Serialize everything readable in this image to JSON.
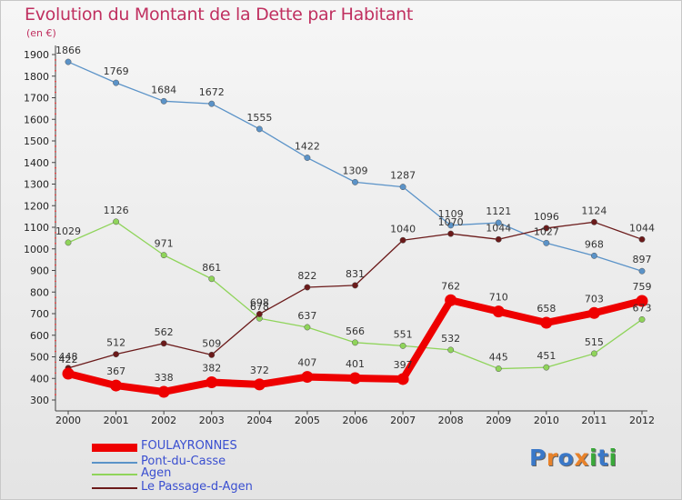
{
  "title": "Evolution du Montant de la Dette par Habitant",
  "subtitle": "(en €)",
  "logo": [
    "P",
    "r",
    "o",
    "x",
    "i",
    "t",
    "i"
  ],
  "logo_colors": [
    "#3a78c8",
    "#e8822a",
    "#3a78c8",
    "#e8822a",
    "#3aa83a",
    "#3a78c8",
    "#3aa83a"
  ],
  "chart_data": {
    "type": "line",
    "x": [
      "2000",
      "2001",
      "2002",
      "2003",
      "2004",
      "2005",
      "2006",
      "2007",
      "2008",
      "2009",
      "2010",
      "2011",
      "2012"
    ],
    "ylim": [
      300,
      1900
    ],
    "yticks": [
      300,
      400,
      500,
      600,
      700,
      800,
      900,
      1000,
      1100,
      1200,
      1300,
      1400,
      1500,
      1600,
      1700,
      1800,
      1900
    ],
    "grid": false,
    "legend_position": "bottom-left",
    "series": [
      {
        "name": "FOULAYRONNES",
        "color": "#ee0000",
        "values": [
          422,
          367,
          338,
          382,
          372,
          407,
          401,
          397,
          762,
          710,
          658,
          703,
          759
        ]
      },
      {
        "name": "Pont-du-Casse",
        "color": "#5b93c8",
        "values": [
          1866,
          1769,
          1684,
          1672,
          1555,
          1422,
          1309,
          1287,
          1109,
          1121,
          1027,
          968,
          897
        ]
      },
      {
        "name": "Agen",
        "color": "#8fd45a",
        "values": [
          1029,
          1126,
          971,
          861,
          678,
          637,
          566,
          551,
          532,
          445,
          451,
          515,
          673
        ]
      },
      {
        "name": "Le Passage-d-Agen",
        "color": "#6b1a1a",
        "values": [
          448,
          512,
          562,
          509,
          698,
          822,
          831,
          1040,
          1070,
          1044,
          1096,
          1124,
          1044
        ]
      }
    ]
  }
}
